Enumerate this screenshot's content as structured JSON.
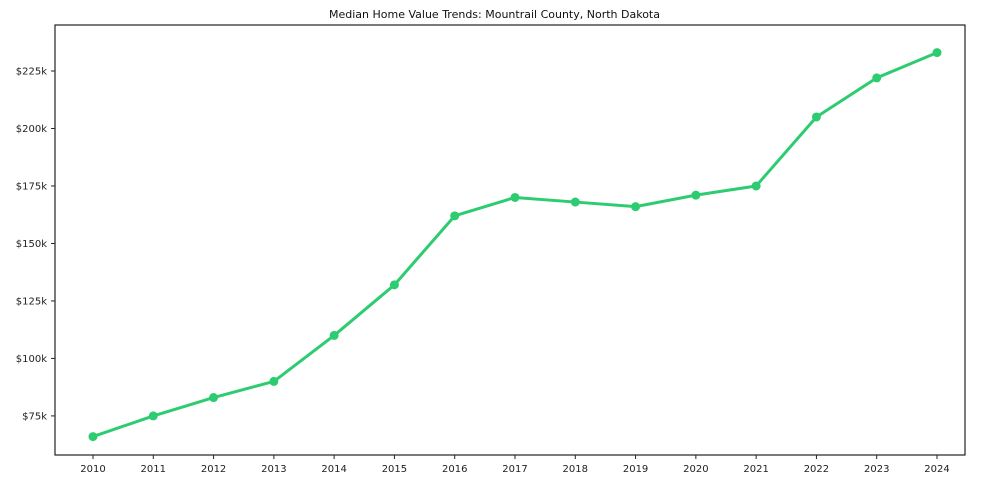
{
  "chart_data": {
    "type": "line",
    "title": "Median Home Value Trends: Mountrail County, North Dakota",
    "x": [
      2010,
      2011,
      2012,
      2013,
      2014,
      2015,
      2016,
      2017,
      2018,
      2019,
      2020,
      2021,
      2022,
      2023,
      2024
    ],
    "x_tick_labels": [
      "2010",
      "2011",
      "2012",
      "2013",
      "2014",
      "2015",
      "2016",
      "2017",
      "2018",
      "2019",
      "2020",
      "2021",
      "2022",
      "2023",
      "2024"
    ],
    "series": [
      {
        "name": "Median Home Value",
        "values": [
          66000,
          75000,
          83000,
          90000,
          110000,
          132000,
          162000,
          170000,
          168000,
          166000,
          171000,
          175000,
          205000,
          222000,
          233000
        ]
      }
    ],
    "y_ticks": [
      75000,
      100000,
      125000,
      150000,
      175000,
      200000,
      225000
    ],
    "y_tick_labels": [
      "$75k",
      "$100k",
      "$125k",
      "$150k",
      "$175k",
      "$200k",
      "$225k"
    ],
    "ylim": [
      58000,
      245000
    ],
    "grid": false,
    "legend": "none",
    "line_color": "#2ecc71",
    "marker_color": "#2ecc71",
    "spine_color": "#222222",
    "background_color": "#ffffff"
  }
}
